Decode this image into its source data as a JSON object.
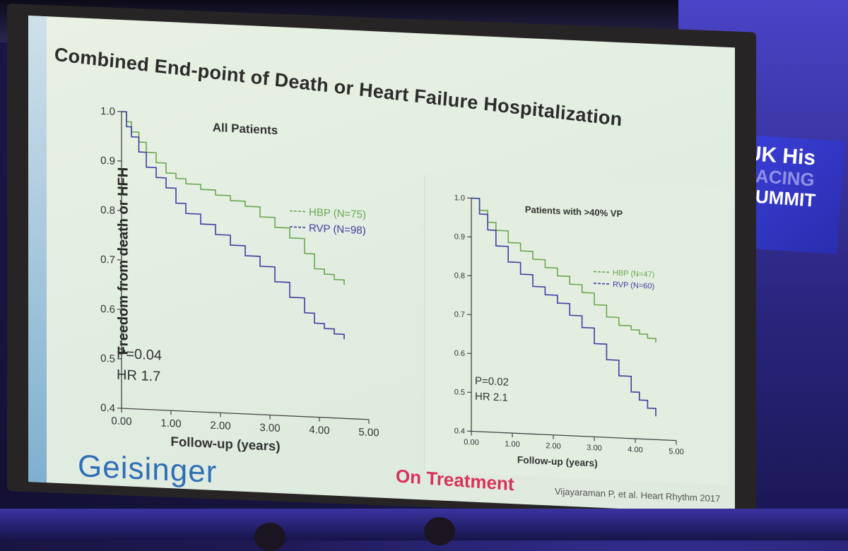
{
  "slide": {
    "title": "Combined End-point of Death or Heart Failure Hospitalization",
    "ylabel": "Freedom from death or HFH",
    "brand": "Geisinger",
    "on_treatment": "On Treatment",
    "citation": "Vijayaraman P, et al. Heart Rhythm 2017"
  },
  "summit": {
    "line1": "UK His",
    "line2": "PACING",
    "line3": "SUMMIT"
  },
  "colors": {
    "hbp": "#6aa84f",
    "rvp": "#3d3fa0",
    "brand": "#2f6fb5",
    "on_treatment": "#d8335a"
  },
  "chart_data": [
    {
      "type": "line",
      "title": "All Patients",
      "xlabel": "Follow-up (years)",
      "ylabel": "Freedom from death or HFH",
      "xlim": [
        0,
        5
      ],
      "ylim": [
        0.4,
        1.0
      ],
      "xticks": [
        "0.00",
        "1.00",
        "2.00",
        "3.00",
        "4.00",
        "5.00"
      ],
      "yticks": [
        "0.4",
        "0.5",
        "0.6",
        "0.7",
        "0.8",
        "0.9",
        "1.0"
      ],
      "annotations": [
        "P=0.04",
        "HR 1.7"
      ],
      "series": [
        {
          "name": "HBP (N=75)",
          "color": "#6aa84f",
          "x": [
            0,
            0.1,
            0.2,
            0.35,
            0.5,
            0.7,
            0.9,
            1.1,
            1.3,
            1.6,
            1.9,
            2.2,
            2.5,
            2.8,
            3.1,
            3.4,
            3.7,
            3.9,
            4.1,
            4.3,
            4.5
          ],
          "y": [
            1.0,
            0.98,
            0.96,
            0.94,
            0.92,
            0.9,
            0.88,
            0.87,
            0.86,
            0.85,
            0.84,
            0.83,
            0.82,
            0.8,
            0.78,
            0.76,
            0.73,
            0.7,
            0.69,
            0.68,
            0.67
          ]
        },
        {
          "name": "RVP (N=98)",
          "color": "#3d3fa0",
          "x": [
            0,
            0.1,
            0.2,
            0.35,
            0.5,
            0.7,
            0.9,
            1.1,
            1.3,
            1.6,
            1.9,
            2.2,
            2.5,
            2.8,
            3.1,
            3.4,
            3.7,
            3.9,
            4.1,
            4.3,
            4.5
          ],
          "y": [
            1.0,
            0.97,
            0.95,
            0.92,
            0.89,
            0.87,
            0.85,
            0.82,
            0.8,
            0.78,
            0.76,
            0.74,
            0.72,
            0.7,
            0.67,
            0.64,
            0.61,
            0.59,
            0.58,
            0.57,
            0.56
          ]
        }
      ]
    },
    {
      "type": "line",
      "title": "Patients with >40% VP",
      "xlabel": "Follow-up (years)",
      "ylabel": "",
      "xlim": [
        0,
        5
      ],
      "ylim": [
        0.4,
        1.0
      ],
      "xticks": [
        "0.00",
        "1.00",
        "2.00",
        "3.00",
        "4.00",
        "5.00"
      ],
      "yticks": [
        "0.4",
        "0.5",
        "0.6",
        "0.7",
        "0.8",
        "0.9",
        "1.0"
      ],
      "annotations": [
        "P=0.02",
        "HR 2.1"
      ],
      "series": [
        {
          "name": "HBP (N=47)",
          "color": "#6aa84f",
          "x": [
            0,
            0.2,
            0.4,
            0.6,
            0.9,
            1.2,
            1.5,
            1.8,
            2.1,
            2.4,
            2.7,
            3.0,
            3.3,
            3.6,
            3.9,
            4.1,
            4.3,
            4.5
          ],
          "y": [
            1.0,
            0.97,
            0.94,
            0.92,
            0.89,
            0.87,
            0.85,
            0.83,
            0.81,
            0.79,
            0.77,
            0.74,
            0.71,
            0.69,
            0.68,
            0.67,
            0.66,
            0.65
          ]
        },
        {
          "name": "RVP (N=60)",
          "color": "#3d3fa0",
          "x": [
            0,
            0.2,
            0.4,
            0.6,
            0.9,
            1.2,
            1.5,
            1.8,
            2.1,
            2.4,
            2.7,
            3.0,
            3.3,
            3.6,
            3.9,
            4.1,
            4.3,
            4.5
          ],
          "y": [
            1.0,
            0.96,
            0.92,
            0.88,
            0.84,
            0.81,
            0.78,
            0.76,
            0.74,
            0.71,
            0.68,
            0.64,
            0.6,
            0.56,
            0.52,
            0.5,
            0.48,
            0.46
          ]
        }
      ]
    }
  ]
}
